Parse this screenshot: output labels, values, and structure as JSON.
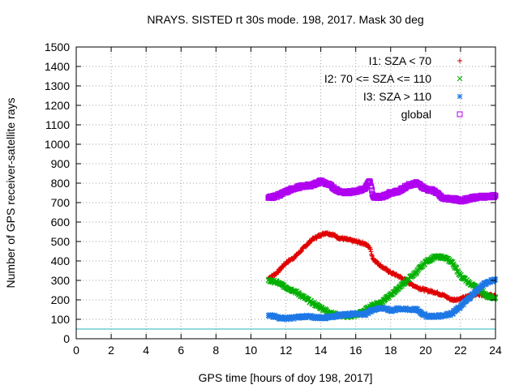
{
  "chart_data": {
    "type": "scatter",
    "title": "NRAYS. SISTED rt 30s mode. 198, 2017. Mask 30 deg",
    "xlabel": "GPS time [hours of doy 198, 2017]",
    "ylabel": "Number of GPS receiver-satellite rays",
    "xlim": [
      0,
      24
    ],
    "ylim": [
      0,
      1500
    ],
    "xticks": [
      0,
      2,
      4,
      6,
      8,
      10,
      12,
      14,
      16,
      18,
      20,
      22,
      24
    ],
    "xtick_labels": [
      "0",
      "2",
      "4",
      "6",
      "8",
      "10",
      "12",
      "14",
      "16",
      "18",
      "20",
      "22",
      "24"
    ],
    "yticks": [
      0,
      100,
      200,
      300,
      400,
      500,
      600,
      700,
      800,
      900,
      1000,
      1100,
      1200,
      1300,
      1400,
      1500
    ],
    "ytick_labels": [
      "0",
      "100",
      "200",
      "300",
      "400",
      "500",
      "600",
      "700",
      "800",
      "900",
      "1000",
      "1100",
      "1200",
      "1300",
      "1400",
      "1500"
    ],
    "grid": true,
    "legend_position": "top-right",
    "reference_line": {
      "y": 50,
      "color": "#4fc3c8"
    },
    "series": [
      {
        "name": "I1: SZA < 70",
        "marker": "+",
        "color": "#e00000",
        "x": [
          11.0,
          11.5,
          12.0,
          12.5,
          13.0,
          13.5,
          14.0,
          14.3,
          14.7,
          15.0,
          15.5,
          16.0,
          16.5,
          16.8,
          17.0,
          17.5,
          18.0,
          18.5,
          19.0,
          19.5,
          20.0,
          20.5,
          21.0,
          21.5,
          22.0,
          22.5,
          23.0,
          23.5,
          24.0
        ],
        "y": [
          310,
          340,
          390,
          420,
          465,
          510,
          535,
          545,
          535,
          520,
          510,
          500,
          490,
          470,
          410,
          370,
          340,
          320,
          290,
          265,
          250,
          240,
          225,
          200,
          205,
          220,
          230,
          225,
          220
        ]
      },
      {
        "name": "I2: 70 <= SZA <= 110",
        "marker": "x",
        "color": "#00b000",
        "x": [
          11.0,
          11.5,
          12.0,
          12.5,
          13.0,
          13.5,
          14.0,
          14.5,
          15.0,
          15.5,
          16.0,
          16.5,
          17.0,
          17.5,
          18.0,
          18.5,
          19.0,
          19.5,
          20.0,
          20.5,
          21.0,
          21.5,
          22.0,
          22.5,
          23.0,
          23.5,
          24.0
        ],
        "y": [
          300,
          290,
          265,
          245,
          215,
          185,
          160,
          135,
          120,
          115,
          120,
          145,
          175,
          190,
          225,
          265,
          305,
          345,
          395,
          420,
          420,
          395,
          325,
          285,
          260,
          220,
          210
        ]
      },
      {
        "name": "I3: SZA > 110",
        "marker": "*",
        "color": "#1e78e6",
        "x": [
          11.0,
          11.5,
          12.0,
          12.5,
          13.0,
          13.5,
          14.0,
          14.5,
          15.0,
          15.5,
          16.0,
          16.5,
          17.0,
          17.5,
          18.0,
          18.5,
          19.0,
          19.5,
          20.0,
          20.5,
          21.0,
          21.5,
          22.0,
          22.5,
          23.0,
          23.5,
          24.0
        ],
        "y": [
          120,
          110,
          105,
          108,
          115,
          112,
          108,
          112,
          120,
          125,
          130,
          125,
          150,
          160,
          145,
          155,
          150,
          150,
          118,
          115,
          120,
          130,
          165,
          210,
          255,
          290,
          305
        ]
      },
      {
        "name": "global",
        "marker": "square",
        "color": "#b000f0",
        "x": [
          11.0,
          11.5,
          12.0,
          12.5,
          13.0,
          13.5,
          14.0,
          14.5,
          15.0,
          15.5,
          16.0,
          16.5,
          16.8,
          17.0,
          17.5,
          18.0,
          18.5,
          19.0,
          19.5,
          20.0,
          20.5,
          21.0,
          21.5,
          22.0,
          22.5,
          23.0,
          23.5,
          24.0
        ],
        "y": [
          725,
          735,
          755,
          775,
          785,
          790,
          810,
          790,
          760,
          750,
          760,
          770,
          810,
          730,
          730,
          750,
          760,
          790,
          800,
          770,
          760,
          720,
          720,
          710,
          720,
          730,
          730,
          735
        ]
      }
    ]
  }
}
